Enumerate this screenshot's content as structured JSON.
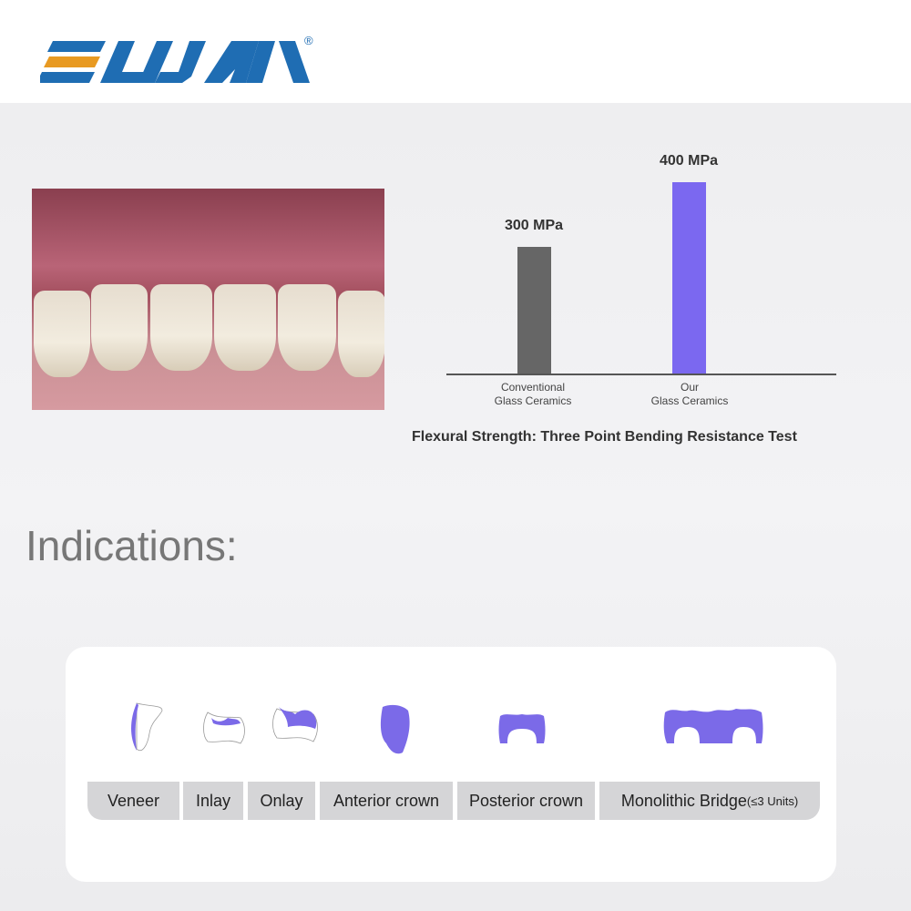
{
  "brand": {
    "logo_text": "ELIJAH",
    "registered": "®",
    "colors": {
      "blue": "#1f6db3",
      "orange": "#e89a22"
    }
  },
  "chart_data": {
    "type": "bar",
    "categories": [
      "Conventional Glass Ceramics",
      "Our Glass Ceramics"
    ],
    "category_lines": [
      [
        "Conventional",
        "Glass Ceramics"
      ],
      [
        "Our",
        "Glass Ceramics"
      ]
    ],
    "values": [
      300,
      400
    ],
    "data_labels": [
      "300 MPa",
      "400 MPa"
    ],
    "colors": [
      "#666666",
      "#7b68f0"
    ],
    "title": "Flexural Strength: Three Point Bending Resistance Test",
    "unit": "MPa"
  },
  "indications": {
    "heading": "Indications:",
    "items": [
      {
        "label": "Veneer"
      },
      {
        "label": "Inlay"
      },
      {
        "label": "Onlay"
      },
      {
        "label": "Anterior crown"
      },
      {
        "label": "Posterior crown"
      },
      {
        "label": "Monolithic Bridge",
        "suffix": "(≤3 Units)"
      }
    ],
    "accent": "#7b6ae8"
  }
}
